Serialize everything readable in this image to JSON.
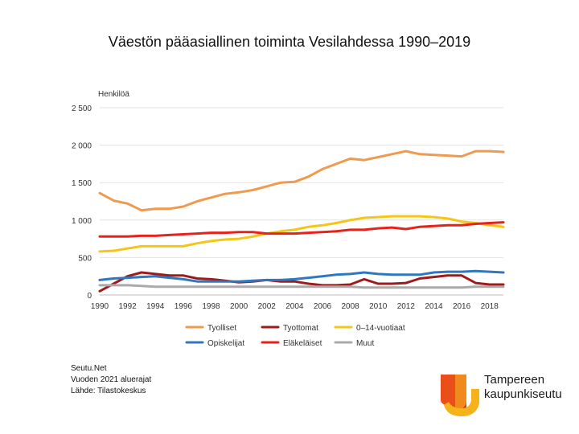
{
  "title": "Väestön pääasiallinen toiminta Vesilahdessa 1990–2019",
  "source": {
    "line1": "Seutu.Net",
    "line2": "Vuoden 2021 aluerajat",
    "line3": "Lähde: Tilastokeskus"
  },
  "logo": {
    "line1": "Tampereen",
    "line2": "kaupunkiseutu"
  },
  "chart_data": {
    "type": "line",
    "title": "",
    "ylabel": "Henkilöä",
    "xlabel": "",
    "ylim": [
      0,
      2500
    ],
    "yticks": [
      0,
      500,
      1000,
      1500,
      2000,
      2500
    ],
    "ytick_labels": [
      "0",
      "500",
      "1 000",
      "1 500",
      "2 000",
      "2 500"
    ],
    "xlim": [
      1990,
      2019
    ],
    "xticks": [
      1990,
      1992,
      1994,
      1996,
      1998,
      2000,
      2002,
      2004,
      2006,
      2008,
      2010,
      2012,
      2014,
      2016,
      2018
    ],
    "gridlines": true,
    "legend_position": "bottom",
    "x": [
      1990,
      1991,
      1992,
      1993,
      1994,
      1995,
      1996,
      1997,
      1998,
      1999,
      2000,
      2001,
      2002,
      2003,
      2004,
      2005,
      2006,
      2007,
      2008,
      2009,
      2010,
      2011,
      2012,
      2013,
      2014,
      2015,
      2016,
      2017,
      2018,
      2019
    ],
    "series": [
      {
        "name": "Tyolliset",
        "color": "#ee9a4f",
        "values": [
          1360,
          1260,
          1220,
          1130,
          1150,
          1150,
          1180,
          1250,
          1300,
          1350,
          1370,
          1400,
          1450,
          1500,
          1510,
          1580,
          1680,
          1750,
          1820,
          1800,
          1840,
          1880,
          1920,
          1880,
          1870,
          1860,
          1850,
          1920,
          1920,
          1910
        ]
      },
      {
        "name": "Tyottomat",
        "color": "#9e1b1b",
        "values": [
          50,
          150,
          250,
          300,
          280,
          260,
          260,
          220,
          210,
          190,
          170,
          180,
          200,
          180,
          180,
          150,
          130,
          130,
          140,
          210,
          150,
          150,
          160,
          220,
          240,
          260,
          260,
          160,
          140,
          140
        ]
      },
      {
        "name": "0–14-vuotiaat",
        "color": "#f5c518",
        "values": [
          580,
          590,
          620,
          650,
          650,
          650,
          650,
          690,
          720,
          740,
          750,
          780,
          820,
          850,
          870,
          910,
          930,
          960,
          1000,
          1030,
          1040,
          1050,
          1050,
          1050,
          1040,
          1020,
          980,
          960,
          930,
          910
        ]
      },
      {
        "name": "Opiskelijat",
        "color": "#2f78bd",
        "values": [
          200,
          220,
          230,
          240,
          250,
          230,
          210,
          180,
          180,
          180,
          180,
          190,
          200,
          200,
          210,
          230,
          250,
          270,
          280,
          300,
          280,
          270,
          270,
          270,
          300,
          310,
          310,
          320,
          310,
          300
        ]
      },
      {
        "name": "Eläkeläiset",
        "color": "#e5231b",
        "values": [
          780,
          780,
          780,
          790,
          790,
          800,
          810,
          820,
          830,
          830,
          840,
          840,
          820,
          820,
          820,
          830,
          840,
          850,
          870,
          870,
          890,
          900,
          880,
          910,
          920,
          930,
          930,
          950,
          960,
          970
        ]
      },
      {
        "name": "Muut",
        "color": "#aaaaaa",
        "values": [
          130,
          130,
          130,
          120,
          110,
          110,
          110,
          110,
          110,
          110,
          110,
          110,
          110,
          110,
          110,
          110,
          110,
          110,
          110,
          100,
          100,
          100,
          100,
          100,
          100,
          100,
          100,
          110,
          110,
          110
        ]
      }
    ]
  }
}
